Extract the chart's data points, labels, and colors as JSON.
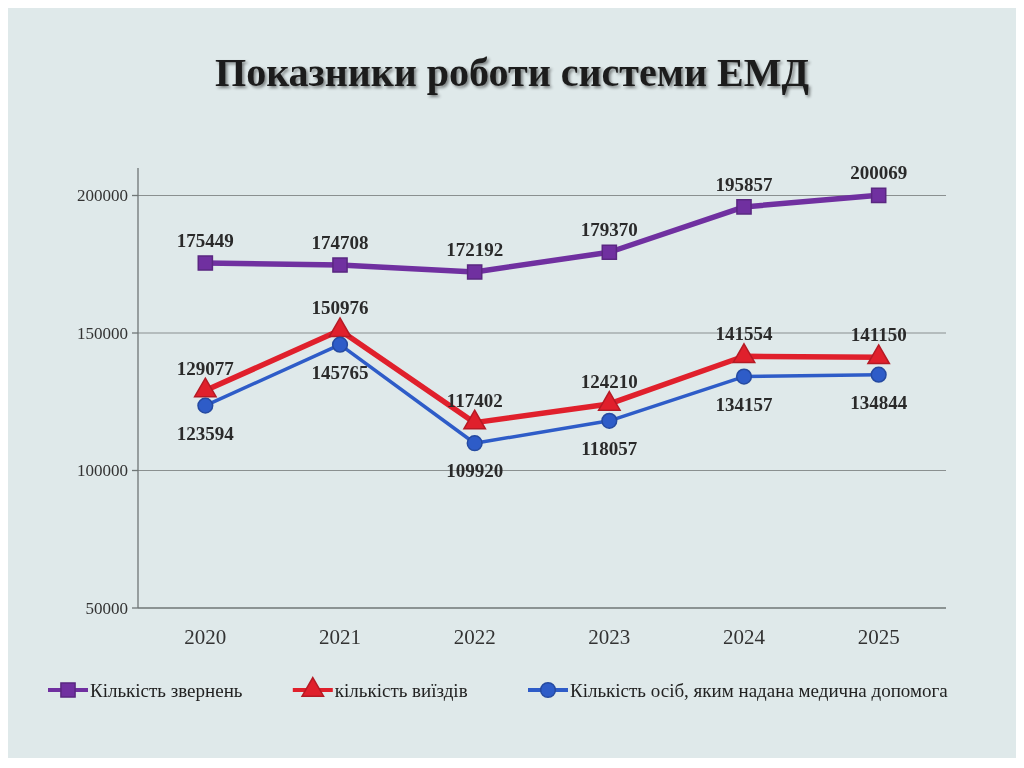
{
  "chart_data": {
    "type": "line",
    "title": "Показники роботи системи ЕМД",
    "categories": [
      "2020",
      "2021",
      "2022",
      "2023",
      "2024",
      "2025"
    ],
    "series": [
      {
        "name": "Кількість звернень",
        "color": "#7030a0",
        "marker": "square",
        "values": [
          175449,
          174708,
          172192,
          179370,
          195857,
          200069
        ]
      },
      {
        "name": "кількість виїздів",
        "color": "#e0202c",
        "marker": "triangle",
        "values": [
          129077,
          150976,
          117402,
          124210,
          141554,
          141150
        ]
      },
      {
        "name": "Кількість осіб, яким надана медична допомога",
        "color": "#2e5cc8",
        "marker": "circle",
        "values": [
          123594,
          145765,
          109920,
          118057,
          134157,
          134844
        ]
      }
    ],
    "ylim": [
      50000,
      210000
    ],
    "yticks": [
      50000,
      100000,
      150000,
      200000
    ],
    "grid": "y",
    "legend": "bottom",
    "data_labels": true
  }
}
